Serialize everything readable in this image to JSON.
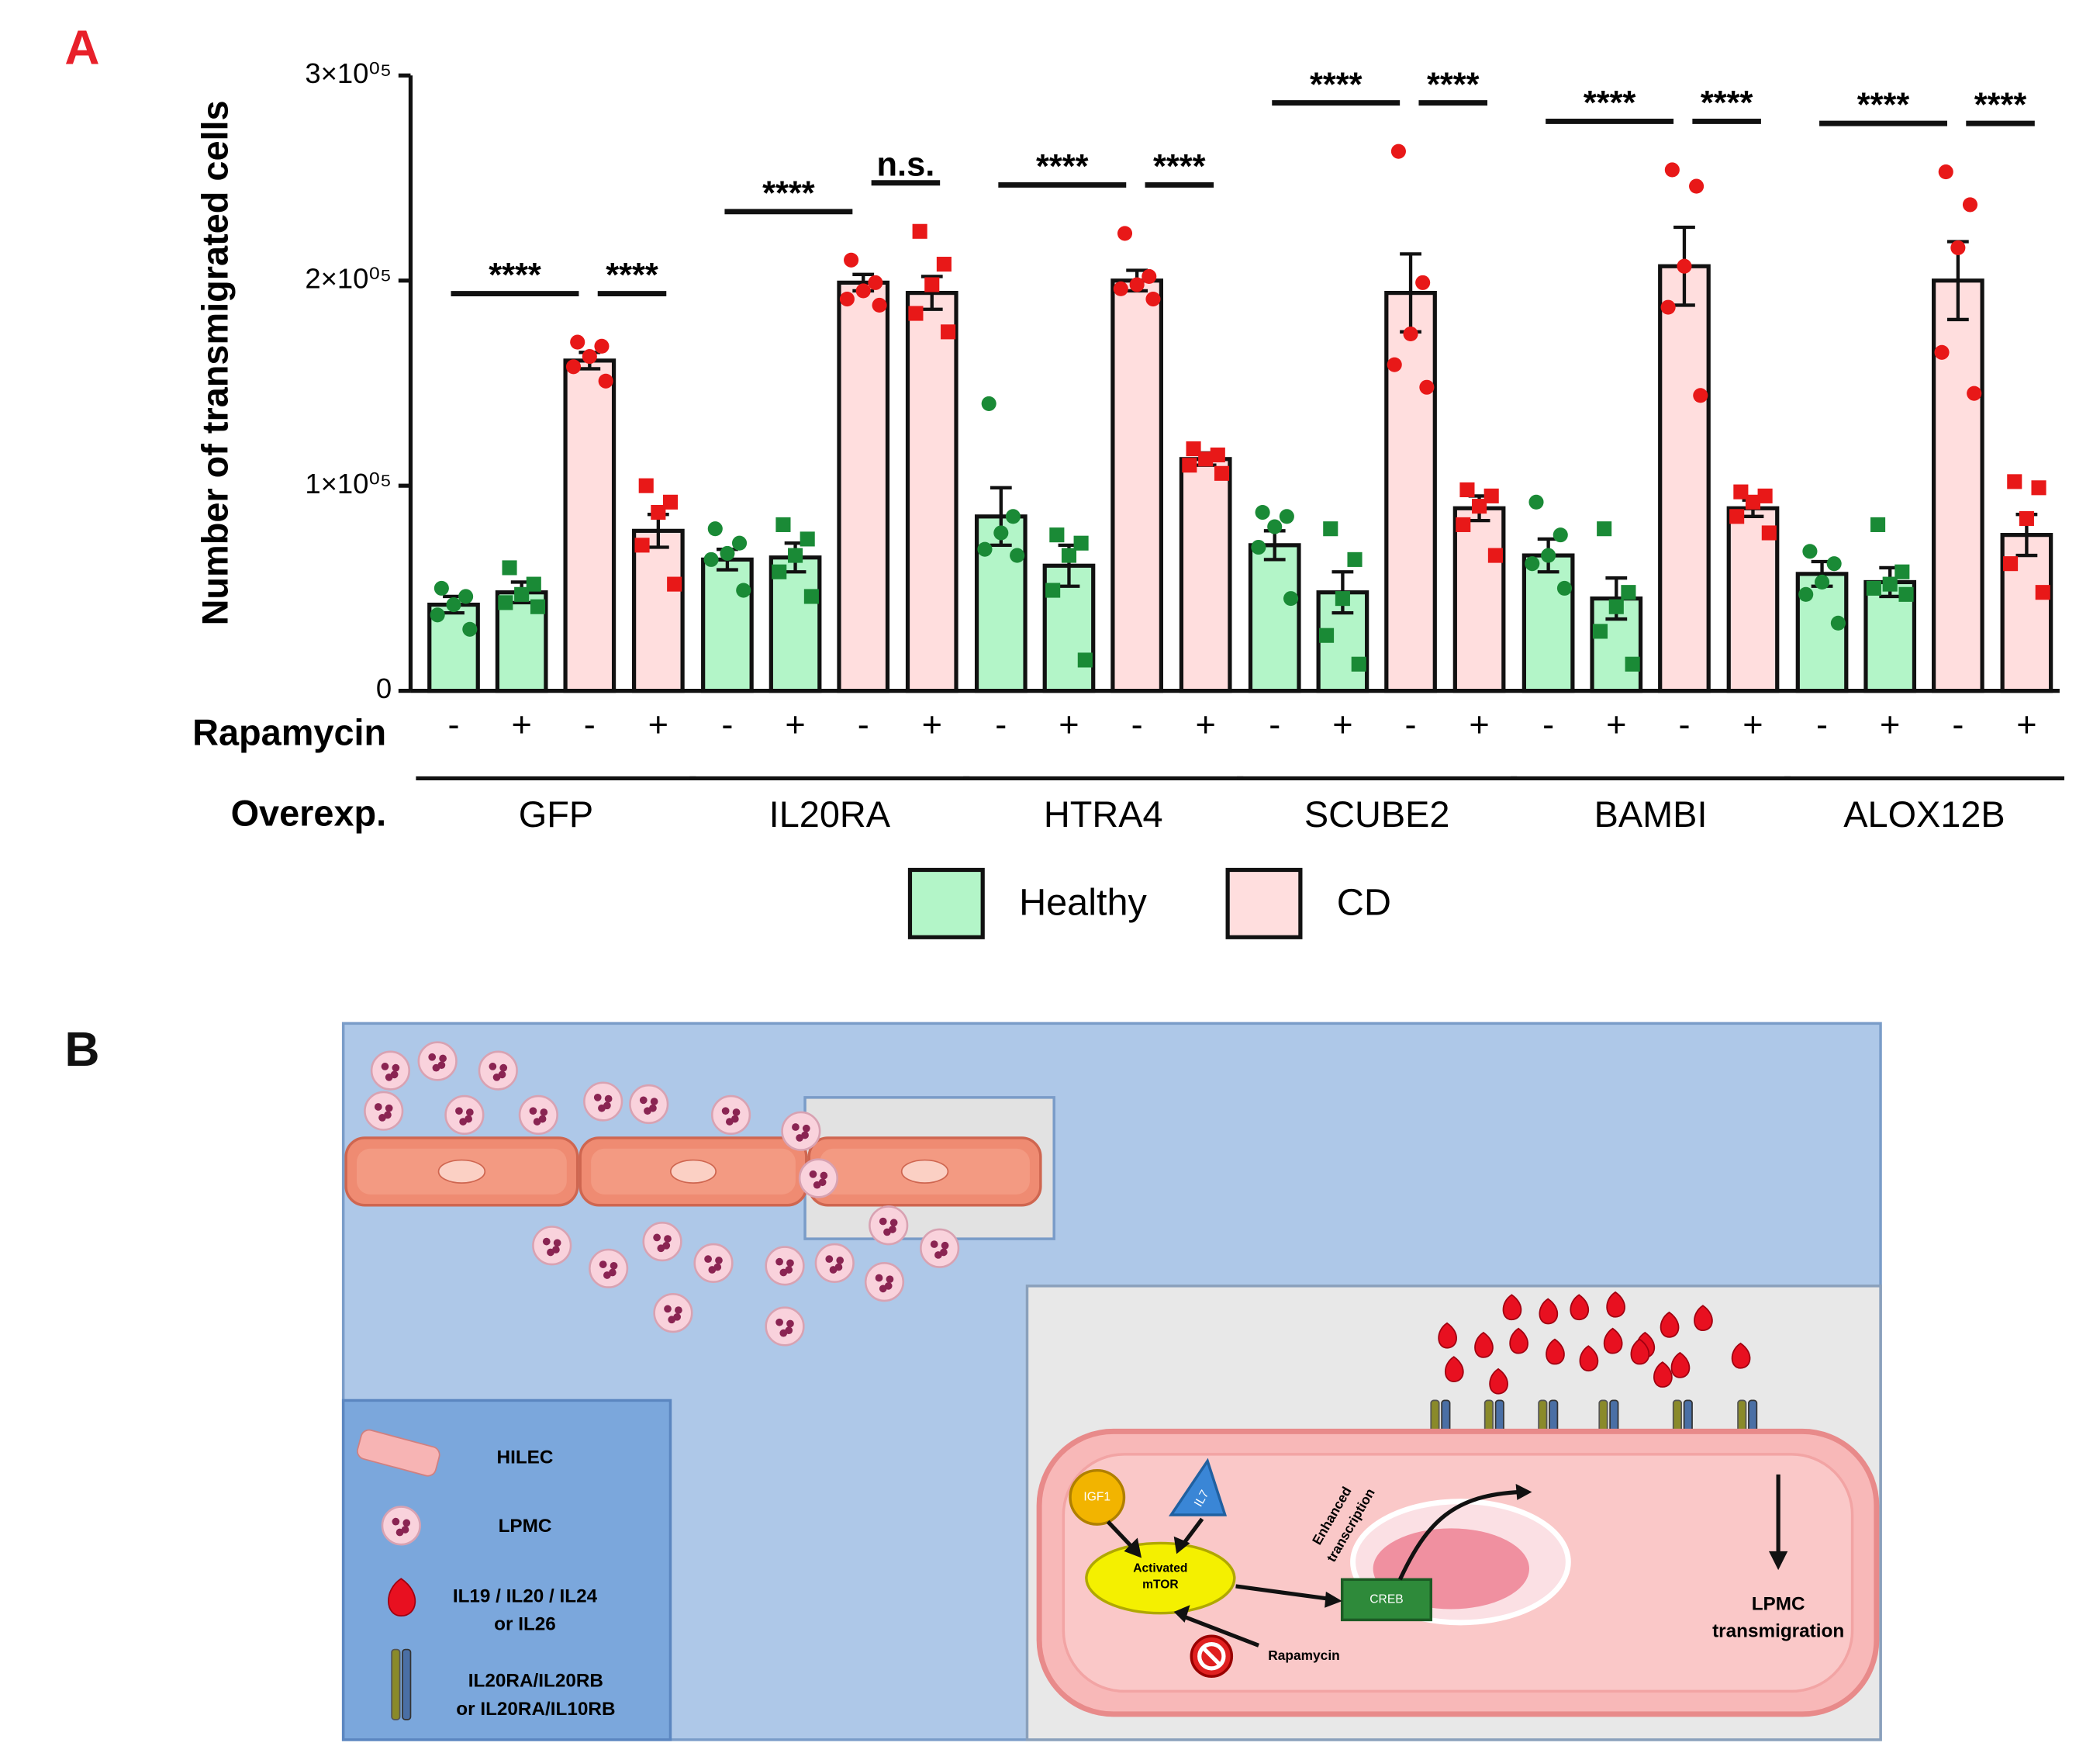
{
  "chart_data": {
    "type": "bar",
    "panel_label": "A",
    "y_label": "Number of transmigrated cells",
    "ylim": [
      0,
      300000
    ],
    "yticks": [
      0,
      {
        "value": 100000,
        "label": "1×10⁰⁵"
      },
      {
        "value": 200000,
        "label": "2×10⁰⁵"
      },
      {
        "value": 300000,
        "label": "3×10⁰⁵"
      }
    ],
    "x_row_label": "Rapamycin",
    "categories": [
      "-",
      "+",
      "-",
      "+",
      "-",
      "+",
      "-",
      "+",
      "-",
      "+",
      "-",
      "+",
      "-",
      "+",
      "-",
      "+",
      "-",
      "+",
      "-",
      "+",
      "-",
      "+",
      "-",
      "+"
    ],
    "group_row_label": "Overexp.",
    "groups": [
      {
        "name": "GFP",
        "significance": [
          "****",
          "****"
        ]
      },
      {
        "name": "IL20RA",
        "significance": [
          "****",
          "n.s."
        ]
      },
      {
        "name": "HTRA4",
        "significance": [
          "****",
          "****"
        ]
      },
      {
        "name": "SCUBE2",
        "significance": [
          "****",
          "****"
        ]
      },
      {
        "name": "BAMBI",
        "significance": [
          "****",
          "****"
        ]
      },
      {
        "name": "ALOX12B",
        "significance": [
          "****",
          "****"
        ]
      }
    ],
    "series": [
      {
        "name": "Healthy",
        "color": "#b3f5c8",
        "point_color": "#1a8a36",
        "values": [
          42000,
          48000,
          null,
          null,
          64000,
          65000,
          null,
          null,
          85000,
          61000,
          null,
          null,
          71000,
          48000,
          null,
          null,
          66000,
          45000,
          null,
          null,
          57000,
          53000,
          null,
          null
        ],
        "errors": [
          4000,
          5000,
          null,
          null,
          5000,
          7000,
          null,
          null,
          14000,
          10000,
          null,
          null,
          7000,
          10000,
          null,
          null,
          8000,
          10000,
          null,
          null,
          6000,
          7000,
          null,
          null
        ],
        "points": [
          [
            50000,
            46000,
            42000,
            37000,
            30000
          ],
          [
            60000,
            52000,
            47000,
            43000,
            41000
          ],
          null,
          null,
          [
            79000,
            72000,
            67000,
            64000,
            49000
          ],
          [
            81000,
            74000,
            66000,
            58000,
            46000
          ],
          null,
          null,
          [
            140000,
            85000,
            77000,
            69000,
            66000
          ],
          [
            76000,
            72000,
            66000,
            49000,
            15000
          ],
          null,
          null,
          [
            87000,
            85000,
            80000,
            70000,
            45000
          ],
          [
            79000,
            64000,
            45000,
            27000,
            13000
          ],
          null,
          null,
          [
            92000,
            76000,
            66000,
            62000,
            50000
          ],
          [
            79000,
            48000,
            41000,
            29000,
            13000
          ],
          null,
          null,
          [
            68000,
            62000,
            53000,
            47000,
            33000
          ],
          [
            81000,
            58000,
            52000,
            50000,
            47000
          ],
          null,
          null
        ]
      },
      {
        "name": "CD",
        "color": "#ffdede",
        "point_color": "#e81818",
        "values": [
          null,
          null,
          161000,
          78000,
          null,
          null,
          199000,
          194000,
          null,
          null,
          200000,
          113000,
          null,
          null,
          194000,
          89000,
          null,
          null,
          207000,
          89000,
          null,
          null,
          200000,
          76000
        ],
        "errors": [
          null,
          null,
          4000,
          8000,
          null,
          null,
          4000,
          8000,
          null,
          null,
          5000,
          3000,
          null,
          null,
          19000,
          6000,
          null,
          null,
          19000,
          4000,
          null,
          null,
          19000,
          10000
        ],
        "points": [
          null,
          null,
          [
            170000,
            168000,
            163000,
            158000,
            151000
          ],
          [
            100000,
            92000,
            87000,
            71000,
            52000
          ],
          null,
          null,
          [
            210000,
            199000,
            195000,
            191000,
            188000
          ],
          [
            224000,
            208000,
            198000,
            184000,
            175000
          ],
          null,
          null,
          [
            223000,
            202000,
            198000,
            196000,
            191000
          ],
          [
            118000,
            115000,
            113000,
            110000,
            106000
          ],
          null,
          null,
          [
            263000,
            199000,
            174000,
            159000,
            148000
          ],
          [
            98000,
            95000,
            90000,
            81000,
            66000
          ],
          null,
          null,
          [
            254000,
            246000,
            207000,
            187000,
            144000
          ],
          [
            97000,
            95000,
            92000,
            85000,
            77000
          ],
          null,
          null,
          [
            253000,
            237000,
            216000,
            165000,
            145000
          ],
          [
            102000,
            99000,
            84000,
            62000,
            48000
          ]
        ]
      }
    ]
  },
  "panel_b": {
    "label": "B",
    "legend": {
      "hilec": "HILEC",
      "lpmc": "LPMC",
      "cytokines": [
        "IL19 / IL20 / IL24",
        "or  IL26"
      ],
      "receptors": [
        "IL20RA/IL20RB",
        "or IL20RA/IL10RB"
      ]
    },
    "igf1": "IGF1",
    "il7": "IL7",
    "mtor": [
      "Activated",
      "mTOR"
    ],
    "transcription": [
      "Enhanced",
      "transcription"
    ],
    "creb": "CREB",
    "rapamycin": "Rapamycin",
    "outcome": [
      "LPMC",
      "transmigration"
    ]
  }
}
